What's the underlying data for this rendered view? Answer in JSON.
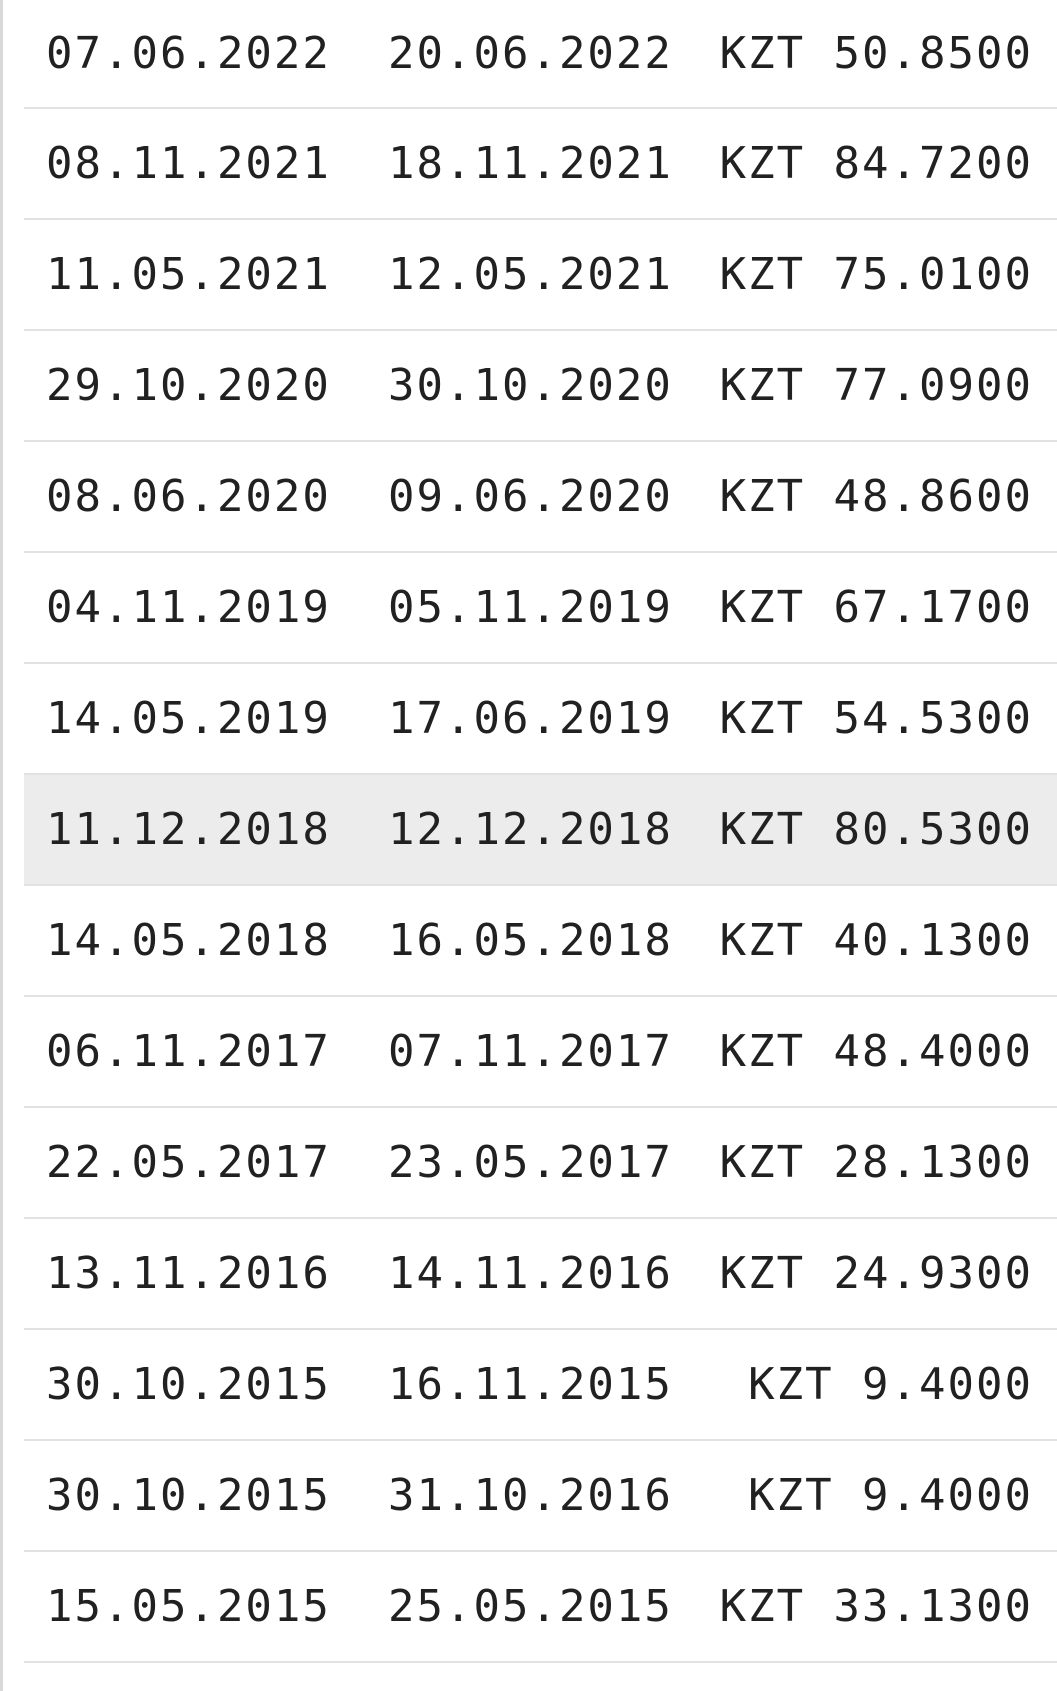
{
  "rows": [
    {
      "from": "07.06.2022",
      "to": "20.06.2022",
      "amount": "KZT 50.8500",
      "highlighted": false
    },
    {
      "from": "08.11.2021",
      "to": "18.11.2021",
      "amount": "KZT 84.7200",
      "highlighted": false
    },
    {
      "from": "11.05.2021",
      "to": "12.05.2021",
      "amount": "KZT 75.0100",
      "highlighted": false
    },
    {
      "from": "29.10.2020",
      "to": "30.10.2020",
      "amount": "KZT 77.0900",
      "highlighted": false
    },
    {
      "from": "08.06.2020",
      "to": "09.06.2020",
      "amount": "KZT 48.8600",
      "highlighted": false
    },
    {
      "from": "04.11.2019",
      "to": "05.11.2019",
      "amount": "KZT 67.1700",
      "highlighted": false
    },
    {
      "from": "14.05.2019",
      "to": "17.06.2019",
      "amount": "KZT 54.5300",
      "highlighted": false
    },
    {
      "from": "11.12.2018",
      "to": "12.12.2018",
      "amount": "KZT 80.5300",
      "highlighted": true
    },
    {
      "from": "14.05.2018",
      "to": "16.05.2018",
      "amount": "KZT 40.1300",
      "highlighted": false
    },
    {
      "from": "06.11.2017",
      "to": "07.11.2017",
      "amount": "KZT 48.4000",
      "highlighted": false
    },
    {
      "from": "22.05.2017",
      "to": "23.05.2017",
      "amount": "KZT 28.1300",
      "highlighted": false
    },
    {
      "from": "13.11.2016",
      "to": "14.11.2016",
      "amount": "KZT 24.9300",
      "highlighted": false
    },
    {
      "from": "30.10.2015",
      "to": "16.11.2015",
      "amount": "KZT 9.4000",
      "highlighted": false
    },
    {
      "from": "30.10.2015",
      "to": "31.10.2016",
      "amount": "KZT 9.4000",
      "highlighted": false
    },
    {
      "from": "15.05.2015",
      "to": "25.05.2015",
      "amount": "KZT 33.1300",
      "highlighted": false
    }
  ],
  "colors": {
    "text": "#212121",
    "divider": "#e2e2e2",
    "highlight_row": "#ececec",
    "background": "#ffffff"
  }
}
